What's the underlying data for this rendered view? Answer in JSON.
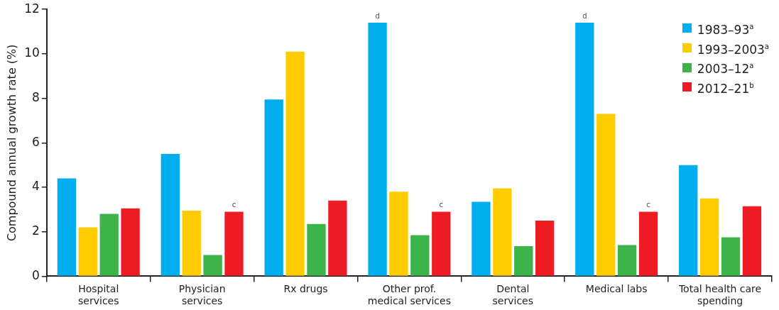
{
  "chart_data": {
    "type": "bar",
    "ylabel": "Compound annual growth rate (%)",
    "categories": [
      "Hospital\nservices",
      "Physician\nservices",
      "Rx drugs",
      "Other prof.\nmedical services",
      "Dental\nservices",
      "Medical labs",
      "Total health care\nspending"
    ],
    "series": [
      {
        "name": "1983–93$^{a}$",
        "color": "#00aeef",
        "values": [
          4.4,
          5.5,
          7.95,
          11.4,
          3.35,
          11.4,
          5.0
        ],
        "value_labels": [
          null,
          null,
          null,
          "d",
          null,
          "d",
          null
        ]
      },
      {
        "name": "1993–2003$^{a}$",
        "color": "#ffcc00",
        "values": [
          2.2,
          2.95,
          10.1,
          3.8,
          3.95,
          7.3,
          3.5
        ]
      },
      {
        "name": "2003–12$^{a}$",
        "color": "#3cb44a",
        "values": [
          2.8,
          0.95,
          2.35,
          1.85,
          1.35,
          1.4,
          1.75
        ]
      },
      {
        "name": "2012–21$^{b}$",
        "color": "#ed1c24",
        "values": [
          3.05,
          2.9,
          3.4,
          2.9,
          2.5,
          2.9,
          3.15
        ],
        "value_labels": [
          null,
          "c",
          null,
          "c",
          null,
          "c",
          null
        ]
      }
    ],
    "ylim": [
      0,
      12
    ],
    "yticks": [
      0,
      2,
      4,
      6,
      8,
      10,
      12
    ],
    "grid": false,
    "legend": "top right"
  }
}
